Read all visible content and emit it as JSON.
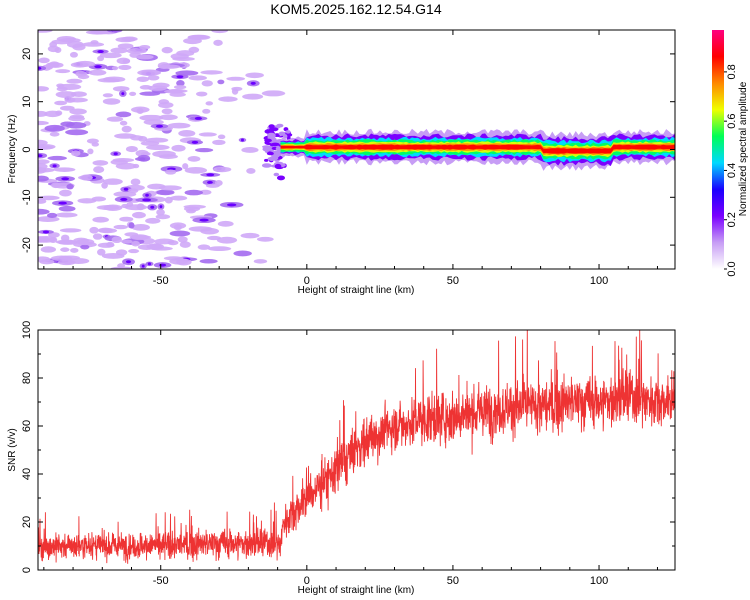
{
  "title": "KOM5.2025.162.12.54.G14",
  "chart_data": [
    {
      "type": "heatmap",
      "title": "",
      "xlabel": "Height of straight line (km)",
      "ylabel": "Frequency (Hz)",
      "xlim": [
        -92,
        126
      ],
      "ylim": [
        -25,
        25
      ],
      "xticks": [
        -50,
        0,
        50,
        100
      ],
      "yticks": [
        -20,
        -10,
        0,
        10,
        20
      ],
      "colorbar": {
        "label": "Normalized spectral amplitude",
        "range": [
          0,
          0.97
        ],
        "ticks": [
          0,
          0.2,
          0.4,
          0.6,
          0.8
        ],
        "colors": [
          "#ffffff",
          "#c79df5",
          "#7a00ff",
          "#1a00ff",
          "#00d9ff",
          "#00ff55",
          "#f0ff00",
          "#ff8800",
          "#ff0000",
          "#ff0080"
        ]
      },
      "description_regions": {
        "scatter_noise_x": [
          -92,
          -10
        ],
        "signal_band_x": [
          -10,
          126
        ],
        "signal_band_freq": [
          -1.5,
          1.5
        ]
      }
    },
    {
      "type": "line",
      "title": "",
      "xlabel": "Height of straight line (km)",
      "ylabel": "SNR (v/v)",
      "xlim": [
        -92,
        126
      ],
      "ylim": [
        0,
        100
      ],
      "xticks": [
        -50,
        0,
        50,
        100
      ],
      "yticks": [
        0,
        20,
        40,
        60,
        80,
        100
      ],
      "color": "#ee3333",
      "series_envelope": {
        "x": [
          -92,
          -60,
          -30,
          -9,
          -8,
          0,
          10,
          20,
          30,
          40,
          50,
          60,
          70,
          80,
          90,
          100,
          110,
          126
        ],
        "mean": [
          10,
          10,
          11,
          11,
          20,
          30,
          42,
          54,
          60,
          63,
          64,
          66,
          68,
          68,
          70,
          70,
          72,
          70
        ],
        "spread": [
          7,
          7,
          8,
          8,
          9,
          12,
          13,
          13,
          13,
          13,
          14,
          14,
          14,
          14,
          14,
          14,
          15,
          12
        ]
      }
    }
  ]
}
